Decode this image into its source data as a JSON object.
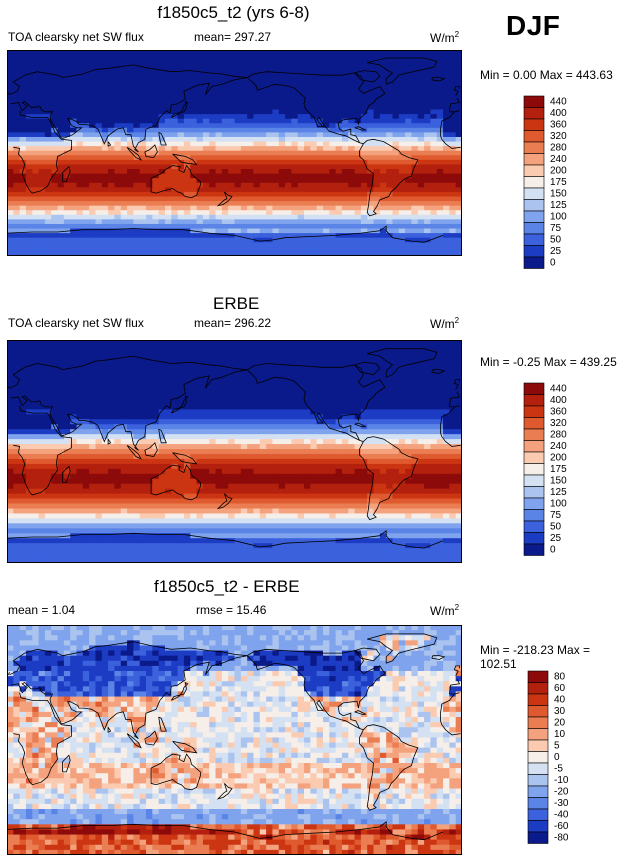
{
  "season": "DJF",
  "unit_base": "W/m",
  "unit_exp": "2",
  "chart_data": [
    {
      "type": "heatmap",
      "title": "f1850c5_t2 (yrs 6-8)",
      "left_label": "TOA clearsky net SW flux",
      "center_label": "mean= 297.27",
      "minmax": "Min =   0.00 Max = 443.63",
      "levels": [
        "440",
        "400",
        "360",
        "320",
        "280",
        "240",
        "200",
        "175",
        "150",
        "125",
        "100",
        "75",
        "50",
        "25",
        "0"
      ],
      "colors": [
        "#8c0a0a",
        "#b3200e",
        "#cc3512",
        "#df5a2f",
        "#ea7d52",
        "#f4a27e",
        "#fbcbb1",
        "#f6eee8",
        "#d3e1f3",
        "#aac4ef",
        "#7fa3ec",
        "#5b84e7",
        "#3b61dd",
        "#1d3cc4",
        "#0b1a8a"
      ],
      "field": "model",
      "mean": 297.27,
      "min": 0.0,
      "max": 443.63
    },
    {
      "type": "heatmap",
      "title": "ERBE",
      "left_label": "TOA clearsky net SW flux",
      "center_label": "mean= 296.22",
      "minmax": "Min =  -0.25 Max = 439.25",
      "levels": [
        "440",
        "400",
        "360",
        "320",
        "280",
        "240",
        "200",
        "175",
        "150",
        "125",
        "100",
        "75",
        "50",
        "25",
        "0"
      ],
      "colors": [
        "#8c0a0a",
        "#b3200e",
        "#cc3512",
        "#df5a2f",
        "#ea7d52",
        "#f4a27e",
        "#fbcbb1",
        "#f6eee8",
        "#d3e1f3",
        "#aac4ef",
        "#7fa3ec",
        "#5b84e7",
        "#3b61dd",
        "#1d3cc4",
        "#0b1a8a"
      ],
      "field": "obs",
      "mean": 296.22,
      "min": -0.25,
      "max": 439.25
    },
    {
      "type": "heatmap",
      "title": "f1850c5_t2 - ERBE",
      "left_label": "mean =   1.04",
      "center_label": "rmse =   15.46",
      "minmax": "Min = -218.23 Max = 102.51",
      "levels": [
        "80",
        "60",
        "40",
        "30",
        "20",
        "10",
        "5",
        "0",
        "-5",
        "-10",
        "-20",
        "-30",
        "-40",
        "-60",
        "-80"
      ],
      "colors": [
        "#8c0a0a",
        "#b3200e",
        "#cc3512",
        "#df5a2f",
        "#ea7d52",
        "#f4a27e",
        "#fbcbb1",
        "#f6eee8",
        "#d3e1f3",
        "#aac4ef",
        "#7fa3ec",
        "#5b84e7",
        "#3b61dd",
        "#1d3cc4",
        "#0b1a8a"
      ],
      "field": "diff",
      "mean": 1.04,
      "rmse": 15.46,
      "min": -218.23,
      "max": 102.51
    }
  ]
}
